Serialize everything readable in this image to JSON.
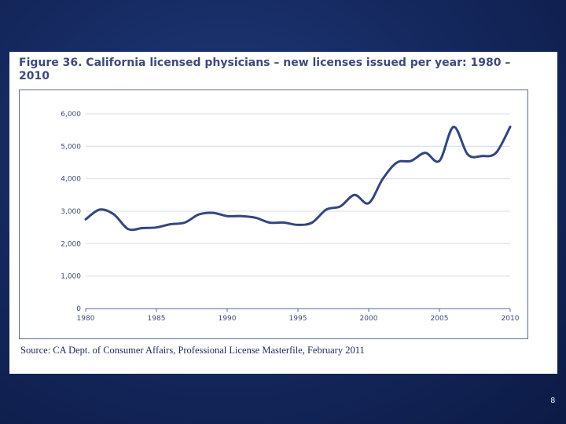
{
  "slide": {
    "page_number": "8"
  },
  "figure": {
    "title": "Figure 36. California licensed physicians – new licenses issued per year: 1980 – 2010",
    "source": "Source: CA Dept. of Consumer Affairs, Professional License Masterfile, February 2011"
  },
  "colors": {
    "line": "#34457e",
    "grid": "#d6dcea",
    "axis": "#5a6a96",
    "background": "#14275c"
  },
  "chart_data": {
    "type": "line",
    "title": "Figure 36. California licensed physicians – new licenses issued per year: 1980 – 2010",
    "xlabel": "",
    "ylabel": "",
    "xlim": [
      1980,
      2010
    ],
    "ylim": [
      0,
      6000
    ],
    "grid": true,
    "legend": "none",
    "x_ticks": [
      1980,
      1985,
      1990,
      1995,
      2000,
      2005,
      2010
    ],
    "x_tick_labels": [
      "1980",
      "1985",
      "1990",
      "1995",
      "2000",
      "2005",
      "2010"
    ],
    "y_ticks": [
      0,
      1000,
      2000,
      3000,
      4000,
      5000,
      6000
    ],
    "y_tick_labels": [
      "0",
      "1,000",
      "2,000",
      "3,000",
      "4,000",
      "5,000",
      "6,000"
    ],
    "series": [
      {
        "name": "New licenses issued",
        "x": [
          1980,
          1981,
          1982,
          1983,
          1984,
          1985,
          1986,
          1987,
          1988,
          1989,
          1990,
          1991,
          1992,
          1993,
          1994,
          1995,
          1996,
          1997,
          1998,
          1999,
          2000,
          2001,
          2002,
          2003,
          2004,
          2005,
          2006,
          2007,
          2008,
          2009,
          2010
        ],
        "values": [
          2750,
          3050,
          2900,
          2450,
          2480,
          2500,
          2600,
          2650,
          2900,
          2950,
          2850,
          2850,
          2800,
          2650,
          2650,
          2580,
          2650,
          3050,
          3150,
          3500,
          3250,
          4000,
          4500,
          4550,
          4800,
          4550,
          5600,
          4750,
          4700,
          4800,
          5600
        ]
      }
    ]
  }
}
